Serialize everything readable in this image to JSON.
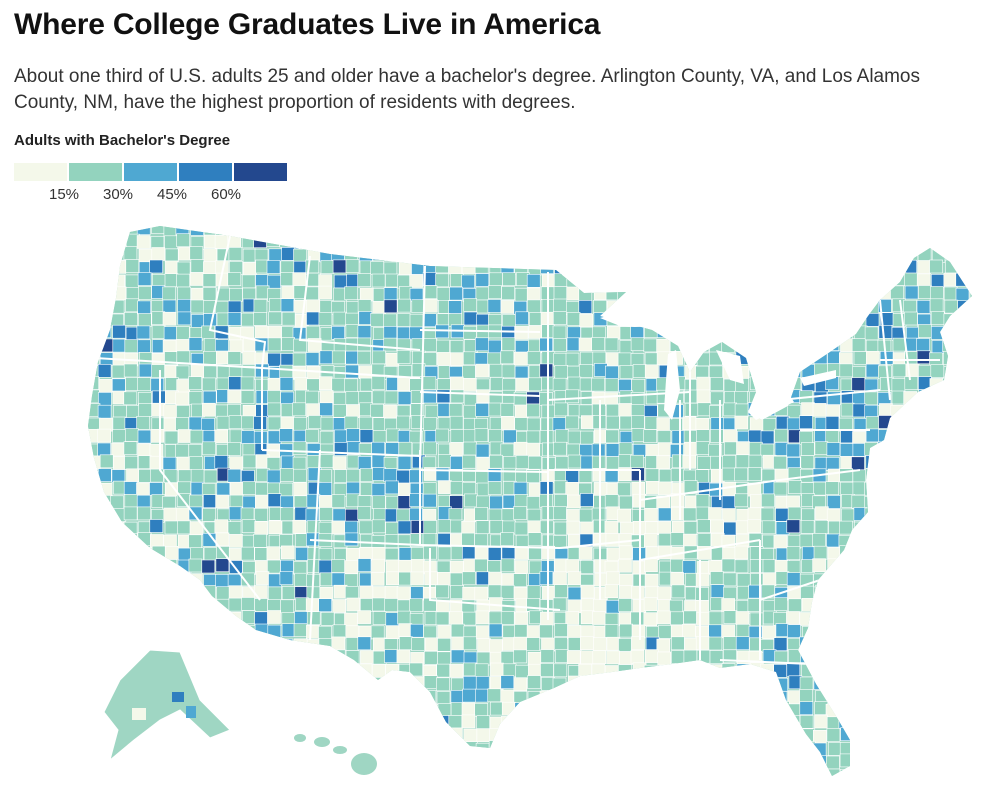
{
  "title": "Where College Graduates Live in America",
  "subtitle": "About one third of U.S. adults 25 and older have a bachelor's degree. Arlington County, VA, and Los Alamos County, NM, have the highest proportion of residents with degrees.",
  "legend": {
    "title": "Adults with Bachelor's Degree",
    "colors": [
      "#f4f8ea",
      "#93d3be",
      "#4fa8d2",
      "#2f7fbf",
      "#23488e"
    ],
    "tick_labels": [
      "15%",
      "30%",
      "45%",
      "60%"
    ]
  }
}
